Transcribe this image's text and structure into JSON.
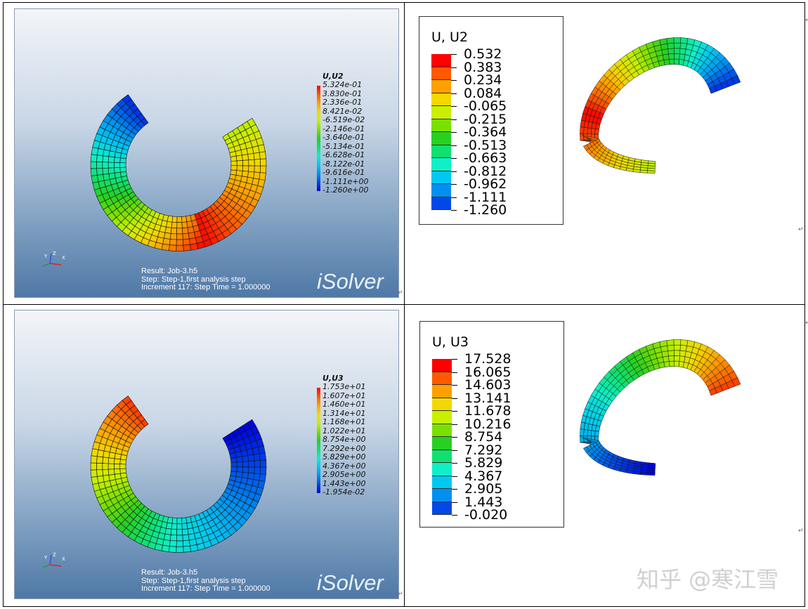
{
  "panels": {
    "isolver_top": {
      "legend_title": "U,U2",
      "legend_values": [
        "5.324e-01",
        "3.830e-01",
        "2.336e-01",
        "8.421e-02",
        "-6.519e-02",
        "-2.146e-01",
        "-3.640e-01",
        "-5.134e-01",
        "-6.628e-01",
        "-8.122e-01",
        "-9.616e-01",
        "-1.111e+00",
        "-1.260e+00"
      ],
      "info_lines": [
        "Result: Job-3.h5",
        "Step: Step-1,first analysis step",
        "Increment     117: Step Time =    1.000000"
      ],
      "logo": "iSolver",
      "triad_labels": [
        "Y",
        "Z",
        "X"
      ]
    },
    "abaqus_top": {
      "legend_title": "U, U2",
      "legend_values": [
        "0.532",
        "0.383",
        "0.234",
        "0.084",
        "-0.065",
        "-0.215",
        "-0.364",
        "-0.513",
        "-0.663",
        "-0.812",
        "-0.962",
        "-1.111",
        "-1.260"
      ]
    },
    "isolver_bottom": {
      "legend_title": "U,U3",
      "legend_values": [
        "1.753e+01",
        "1.607e+01",
        "1.460e+01",
        "1.314e+01",
        "1.168e+01",
        "1.022e+01",
        "8.754e+00",
        "7.292e+00",
        "5.829e+00",
        "4.367e+00",
        "2.905e+00",
        "1.443e+00",
        "-1.954e-02"
      ],
      "info_lines": [
        "Result: Job-3.h5",
        "Step: Step-1,first analysis step",
        "Increment     117: Step Time =    1.000000"
      ],
      "logo": "iSolver",
      "triad_labels": [
        "Y",
        "Z",
        "X"
      ]
    },
    "abaqus_bottom": {
      "legend_title": "U, U3",
      "legend_values": [
        "17.528",
        "16.065",
        "14.603",
        "13.141",
        "11.678",
        "10.216",
        "8.754",
        "7.292",
        "5.829",
        "4.367",
        "2.905",
        "1.443",
        "-0.020"
      ]
    }
  },
  "colors": {
    "scale": [
      "#ff0000",
      "#ff5a00",
      "#ffa000",
      "#f2d800",
      "#c8f000",
      "#7ae000",
      "#28d020",
      "#10e070",
      "#10f0c8",
      "#00c8f0",
      "#0090f0",
      "#0048e8",
      "#0000e0"
    ]
  },
  "watermark": "知乎 @寒江雪",
  "return_mark": "↵"
}
